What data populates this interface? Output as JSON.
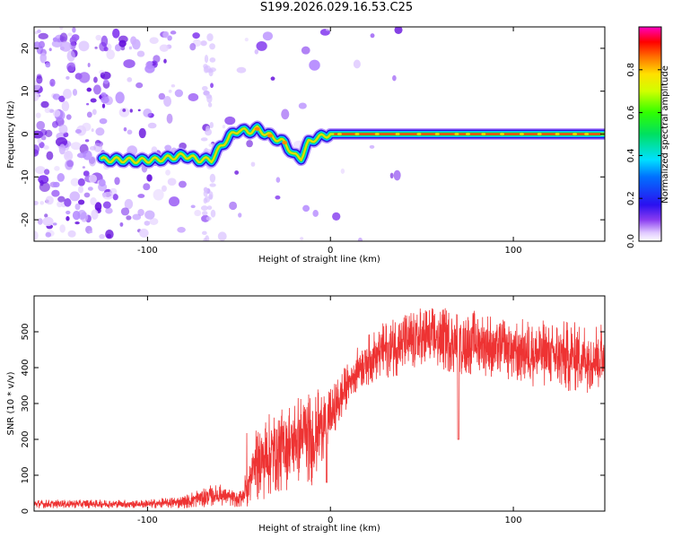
{
  "title": "S199.2026.029.16.53.C25",
  "colors": {
    "snr_line": "#ee3333",
    "axes": "#000000",
    "background": "#ffffff"
  },
  "chart_data": [
    {
      "type": "heatmap",
      "title": "S199.2026.029.16.53.C25",
      "xlabel": "Height of straight line (km)",
      "ylabel": "Frequency (Hz)",
      "xlim": [
        -162,
        150
      ],
      "ylim": [
        -25,
        25
      ],
      "x_ticks": [
        -100,
        0,
        100
      ],
      "x_tick_labels": [
        "-100",
        "0",
        "100"
      ],
      "y_ticks": [
        20,
        10,
        0,
        -10,
        -20
      ],
      "y_tick_labels": [
        "20",
        "10",
        "0",
        "-10",
        "-20"
      ],
      "colorbar": {
        "label": "Normalized spectral amplitude",
        "range": [
          0,
          1
        ],
        "ticks": [
          0.0,
          0.2,
          0.4,
          0.6,
          0.8
        ],
        "tick_labels": [
          "0.0",
          "0.2",
          "0.4",
          "0.6",
          "0.8"
        ]
      },
      "ridge": {
        "description_points_x": [
          -125,
          -115,
          -105,
          -95,
          -88,
          -80,
          -72,
          -65,
          -60,
          -55,
          -50,
          -45,
          -40,
          -35,
          -30,
          -25,
          -20,
          -16,
          -12,
          -8,
          -4,
          0,
          10,
          30,
          60,
          100,
          150
        ],
        "frequency_hz": [
          -6,
          -6,
          -6.2,
          -6,
          -5.5,
          -5,
          -6,
          -6,
          -3,
          -0.5,
          1,
          0.5,
          1.2,
          0,
          -1,
          -2,
          -5,
          -5.5,
          -2,
          -1,
          -0.5,
          0,
          0,
          0,
          0,
          0,
          0
        ]
      }
    },
    {
      "type": "line",
      "xlabel": "Height of straight line (km)",
      "ylabel": "SNR (10 * v/v)",
      "xlim": [
        -162,
        150
      ],
      "ylim": [
        0,
        600
      ],
      "x_ticks": [
        -100,
        0,
        100
      ],
      "x_tick_labels": [
        "-100",
        "0",
        "100"
      ],
      "y_ticks": [
        0,
        100,
        200,
        300,
        400,
        500
      ],
      "y_tick_labels": [
        "0",
        "100",
        "200",
        "300",
        "400",
        "500"
      ],
      "envelope": {
        "x": [
          -162,
          -100,
          -80,
          -70,
          -60,
          -50,
          -45,
          -40,
          -30,
          -20,
          -15,
          -10,
          -5,
          -2,
          0,
          5,
          10,
          15,
          20,
          30,
          40,
          50,
          60,
          70,
          80,
          90,
          100,
          110,
          120,
          130,
          140,
          150
        ],
        "mean": [
          20,
          20,
          25,
          40,
          45,
          30,
          70,
          130,
          170,
          190,
          210,
          200,
          240,
          250,
          260,
          310,
          360,
          400,
          420,
          450,
          470,
          480,
          480,
          470,
          470,
          460,
          450,
          440,
          440,
          430,
          430,
          430
        ],
        "spread": [
          12,
          12,
          18,
          30,
          30,
          20,
          60,
          110,
          120,
          130,
          120,
          130,
          110,
          100,
          80,
          70,
          60,
          60,
          70,
          80,
          90,
          90,
          90,
          90,
          90,
          90,
          90,
          95,
          95,
          100,
          100,
          100
        ]
      }
    }
  ]
}
